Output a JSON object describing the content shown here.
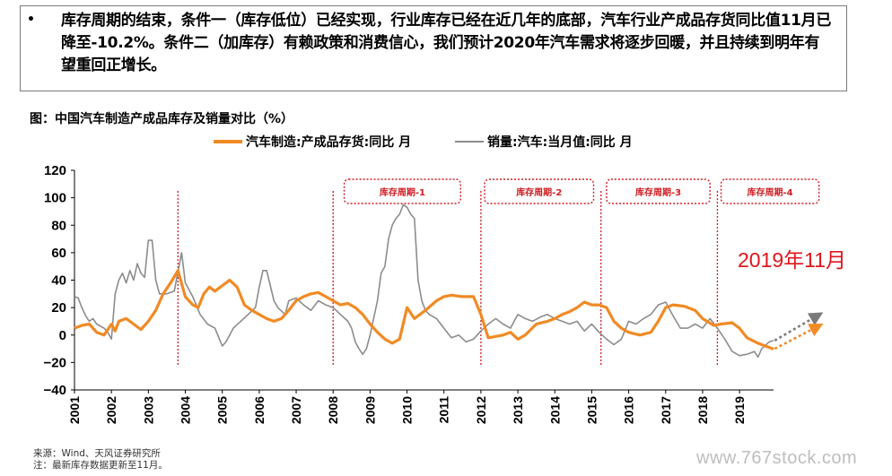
{
  "summary": {
    "bullet": "•",
    "text": "库存周期的结束，条件一（库存低位）已经实现，行业库存已经在近几年的底部，汽车行业产成品存货同比值11月已降至-10.2%。条件二（加库存）有赖政策和消费信心，我们预计2020年汽车需求将逐步回暖，并且持续到明年有望重回正增长。"
  },
  "annotation": "2019年11月",
  "source_lines": [
    "来源：Wind、天风证券研究所",
    "注：最新库存数据更新至11月。"
  ],
  "watermark": "www.767stock.com",
  "colors": {
    "inventory": "#f08a24",
    "sales": "#8c8c8c",
    "cycle": "#d01c22"
  },
  "chart_data": {
    "type": "line",
    "title": "图：中国汽车制造产成品库存及销量对比（%）",
    "x_range": [
      2001.0,
      2019.92
    ],
    "ylim": [
      -40,
      120
    ],
    "yticks": [
      -40,
      -20,
      0,
      20,
      40,
      60,
      80,
      100,
      120
    ],
    "xticks": [
      "2001",
      "2002",
      "2003",
      "2004",
      "2005",
      "2006",
      "2007",
      "2008",
      "2009",
      "2010",
      "2011",
      "2012",
      "2013",
      "2014",
      "2015",
      "2016",
      "2017",
      "2018",
      "2019"
    ],
    "grid": false,
    "legend_position": "top",
    "cycle_dividers": [
      2003.8,
      2008.0,
      2012.0,
      2015.25,
      2018.4
    ],
    "cycle_labels": [
      {
        "label": "库存周期-1",
        "from": 2008.3,
        "to": 2011.45
      },
      {
        "label": "库存周期-2",
        "from": 2012.1,
        "to": 2015.05
      },
      {
        "label": "库存周期-3",
        "from": 2015.4,
        "to": 2018.2
      },
      {
        "label": "库存周期-4",
        "from": 2018.5,
        "to": 2021.15
      }
    ],
    "series": [
      {
        "name": "汽车制造:产成品存货:同比 月",
        "points": [
          [
            2001.0,
            5
          ],
          [
            2001.2,
            7
          ],
          [
            2001.4,
            8
          ],
          [
            2001.6,
            2
          ],
          [
            2001.8,
            0
          ],
          [
            2002.0,
            8
          ],
          [
            2002.1,
            3
          ],
          [
            2002.2,
            10
          ],
          [
            2002.4,
            12
          ],
          [
            2002.6,
            8
          ],
          [
            2002.8,
            4
          ],
          [
            2003.0,
            10
          ],
          [
            2003.2,
            18
          ],
          [
            2003.4,
            30
          ],
          [
            2003.6,
            38
          ],
          [
            2003.8,
            47
          ],
          [
            2004.0,
            28
          ],
          [
            2004.2,
            22
          ],
          [
            2004.35,
            20
          ],
          [
            2004.5,
            30
          ],
          [
            2004.65,
            35
          ],
          [
            2004.8,
            32
          ],
          [
            2005.0,
            36
          ],
          [
            2005.2,
            40
          ],
          [
            2005.4,
            35
          ],
          [
            2005.6,
            22
          ],
          [
            2005.8,
            18
          ],
          [
            2006.0,
            15
          ],
          [
            2006.2,
            12
          ],
          [
            2006.4,
            10
          ],
          [
            2006.6,
            12
          ],
          [
            2006.8,
            18
          ],
          [
            2007.0,
            25
          ],
          [
            2007.2,
            28
          ],
          [
            2007.4,
            30
          ],
          [
            2007.6,
            31
          ],
          [
            2007.8,
            28
          ],
          [
            2008.0,
            25
          ],
          [
            2008.2,
            22
          ],
          [
            2008.4,
            23
          ],
          [
            2008.6,
            20
          ],
          [
            2008.8,
            15
          ],
          [
            2009.0,
            8
          ],
          [
            2009.2,
            2
          ],
          [
            2009.4,
            -3
          ],
          [
            2009.6,
            -6
          ],
          [
            2009.8,
            -3
          ],
          [
            2010.0,
            20
          ],
          [
            2010.2,
            12
          ],
          [
            2010.5,
            18
          ],
          [
            2010.8,
            25
          ],
          [
            2011.0,
            28
          ],
          [
            2011.2,
            29
          ],
          [
            2011.5,
            28
          ],
          [
            2011.8,
            28
          ],
          [
            2012.0,
            15
          ],
          [
            2012.2,
            -2
          ],
          [
            2012.4,
            -1
          ],
          [
            2012.6,
            0
          ],
          [
            2012.8,
            2
          ],
          [
            2013.0,
            -3
          ],
          [
            2013.2,
            0
          ],
          [
            2013.5,
            8
          ],
          [
            2013.8,
            10
          ],
          [
            2014.0,
            12
          ],
          [
            2014.2,
            15
          ],
          [
            2014.4,
            17
          ],
          [
            2014.6,
            20
          ],
          [
            2014.8,
            24
          ],
          [
            2015.0,
            22
          ],
          [
            2015.2,
            22
          ],
          [
            2015.4,
            20
          ],
          [
            2015.6,
            10
          ],
          [
            2015.8,
            5
          ],
          [
            2016.0,
            2
          ],
          [
            2016.3,
            0
          ],
          [
            2016.6,
            2
          ],
          [
            2016.8,
            10
          ],
          [
            2017.0,
            20
          ],
          [
            2017.2,
            22
          ],
          [
            2017.5,
            21
          ],
          [
            2017.8,
            18
          ],
          [
            2018.0,
            12
          ],
          [
            2018.3,
            7
          ],
          [
            2018.5,
            8
          ],
          [
            2018.8,
            9
          ],
          [
            2019.0,
            5
          ],
          [
            2019.2,
            -2
          ],
          [
            2019.5,
            -6
          ],
          [
            2019.7,
            -8
          ],
          [
            2019.92,
            -10.2
          ]
        ]
      },
      {
        "name": "销量:汽车:当月值:同比 月",
        "points": [
          [
            2001.0,
            28
          ],
          [
            2001.1,
            27
          ],
          [
            2001.2,
            20
          ],
          [
            2001.3,
            14
          ],
          [
            2001.4,
            10
          ],
          [
            2001.5,
            12
          ],
          [
            2001.6,
            8
          ],
          [
            2001.8,
            5
          ],
          [
            2001.9,
            2
          ],
          [
            2002.0,
            -3
          ],
          [
            2002.1,
            30
          ],
          [
            2002.2,
            40
          ],
          [
            2002.3,
            45
          ],
          [
            2002.4,
            38
          ],
          [
            2002.5,
            47
          ],
          [
            2002.6,
            40
          ],
          [
            2002.7,
            52
          ],
          [
            2002.8,
            45
          ],
          [
            2002.9,
            42
          ],
          [
            2003.0,
            69
          ],
          [
            2003.1,
            69
          ],
          [
            2003.2,
            40
          ],
          [
            2003.3,
            30
          ],
          [
            2003.5,
            30
          ],
          [
            2003.7,
            32
          ],
          [
            2003.9,
            60
          ],
          [
            2004.0,
            38
          ],
          [
            2004.2,
            28
          ],
          [
            2004.4,
            15
          ],
          [
            2004.6,
            8
          ],
          [
            2004.8,
            5
          ],
          [
            2005.0,
            -8
          ],
          [
            2005.1,
            -5
          ],
          [
            2005.3,
            5
          ],
          [
            2005.5,
            10
          ],
          [
            2005.7,
            15
          ],
          [
            2005.9,
            20
          ],
          [
            2006.0,
            35
          ],
          [
            2006.1,
            47
          ],
          [
            2006.2,
            47
          ],
          [
            2006.4,
            25
          ],
          [
            2006.5,
            20
          ],
          [
            2006.7,
            15
          ],
          [
            2006.8,
            25
          ],
          [
            2007.0,
            27
          ],
          [
            2007.2,
            22
          ],
          [
            2007.4,
            18
          ],
          [
            2007.6,
            25
          ],
          [
            2007.8,
            22
          ],
          [
            2008.0,
            20
          ],
          [
            2008.2,
            15
          ],
          [
            2008.4,
            10
          ],
          [
            2008.5,
            5
          ],
          [
            2008.6,
            -5
          ],
          [
            2008.7,
            -10
          ],
          [
            2008.8,
            -14
          ],
          [
            2008.9,
            -10
          ],
          [
            2009.0,
            0
          ],
          [
            2009.2,
            25
          ],
          [
            2009.3,
            45
          ],
          [
            2009.4,
            50
          ],
          [
            2009.5,
            70
          ],
          [
            2009.6,
            80
          ],
          [
            2009.7,
            85
          ],
          [
            2009.8,
            88
          ],
          [
            2009.9,
            95
          ],
          [
            2010.0,
            93
          ],
          [
            2010.1,
            88
          ],
          [
            2010.2,
            85
          ],
          [
            2010.3,
            40
          ],
          [
            2010.4,
            25
          ],
          [
            2010.5,
            18
          ],
          [
            2010.6,
            15
          ],
          [
            2010.8,
            12
          ],
          [
            2011.0,
            5
          ],
          [
            2011.2,
            -2
          ],
          [
            2011.4,
            0
          ],
          [
            2011.6,
            -5
          ],
          [
            2011.8,
            -3
          ],
          [
            2012.0,
            3
          ],
          [
            2012.2,
            8
          ],
          [
            2012.4,
            12
          ],
          [
            2012.6,
            8
          ],
          [
            2012.8,
            5
          ],
          [
            2013.0,
            15
          ],
          [
            2013.2,
            12
          ],
          [
            2013.4,
            10
          ],
          [
            2013.6,
            13
          ],
          [
            2013.8,
            15
          ],
          [
            2014.0,
            12
          ],
          [
            2014.2,
            10
          ],
          [
            2014.4,
            8
          ],
          [
            2014.6,
            10
          ],
          [
            2014.8,
            3
          ],
          [
            2015.0,
            8
          ],
          [
            2015.2,
            2
          ],
          [
            2015.4,
            -3
          ],
          [
            2015.6,
            -7
          ],
          [
            2015.8,
            -3
          ],
          [
            2016.0,
            10
          ],
          [
            2016.2,
            8
          ],
          [
            2016.4,
            12
          ],
          [
            2016.6,
            15
          ],
          [
            2016.8,
            22
          ],
          [
            2017.0,
            24
          ],
          [
            2017.2,
            14
          ],
          [
            2017.4,
            5
          ],
          [
            2017.6,
            5
          ],
          [
            2017.8,
            8
          ],
          [
            2018.0,
            5
          ],
          [
            2018.2,
            12
          ],
          [
            2018.4,
            5
          ],
          [
            2018.6,
            -3
          ],
          [
            2018.8,
            -12
          ],
          [
            2019.0,
            -15
          ],
          [
            2019.2,
            -14
          ],
          [
            2019.4,
            -12
          ],
          [
            2019.5,
            -16
          ],
          [
            2019.6,
            -10
          ],
          [
            2019.8,
            -5
          ],
          [
            2019.92,
            -4
          ]
        ]
      }
    ],
    "forecast_arrows": [
      {
        "series": "销量:汽车:当月值:同比 月",
        "from": [
          2019.95,
          -4
        ],
        "to": [
          2021.1,
          14
        ]
      },
      {
        "series": "汽车制造:产成品存货:同比 月",
        "from": [
          2019.95,
          -10
        ],
        "to": [
          2021.1,
          6
        ]
      }
    ]
  }
}
